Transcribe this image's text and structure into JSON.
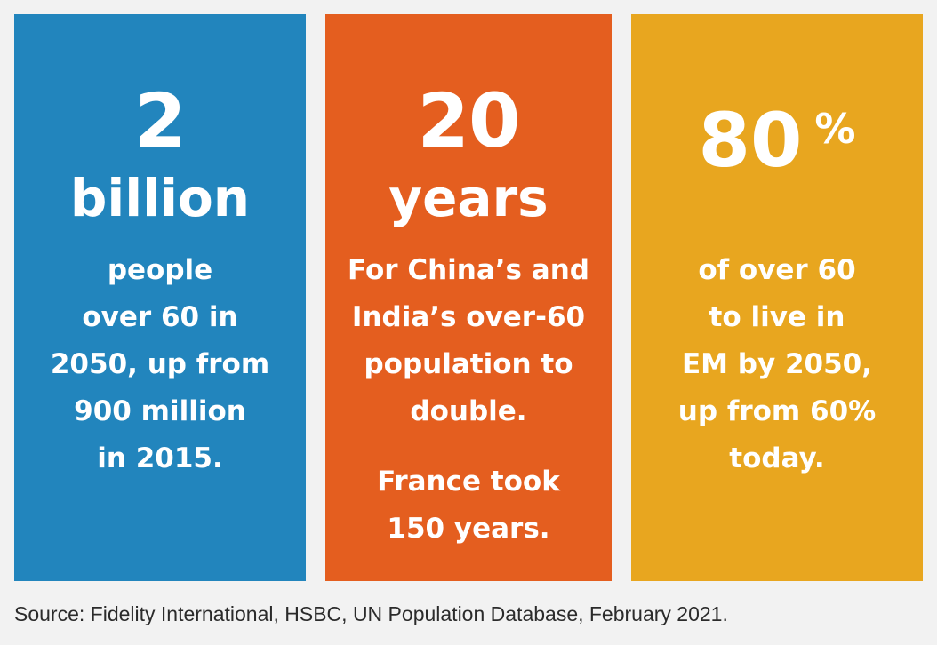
{
  "cards": [
    {
      "number": "2",
      "unit": "billion",
      "description": "people\nover 60 in\n2050, up from\n900 million\nin 2015.",
      "color": "#2285bd"
    },
    {
      "number": "20",
      "unit": "years",
      "description": "For China’s and\nIndia’s over-60\npopulation to\ndouble.",
      "note": "France took\n150 years.",
      "color": "#e45e1f"
    },
    {
      "number": "80",
      "percent_sign": "%",
      "description": "of over 60\nto live in\nEM by 2050,\nup from 60%\ntoday.",
      "color": "#e8a61f"
    }
  ],
  "source": "Source: Fidelity International, HSBC, UN Population Database, February 2021."
}
